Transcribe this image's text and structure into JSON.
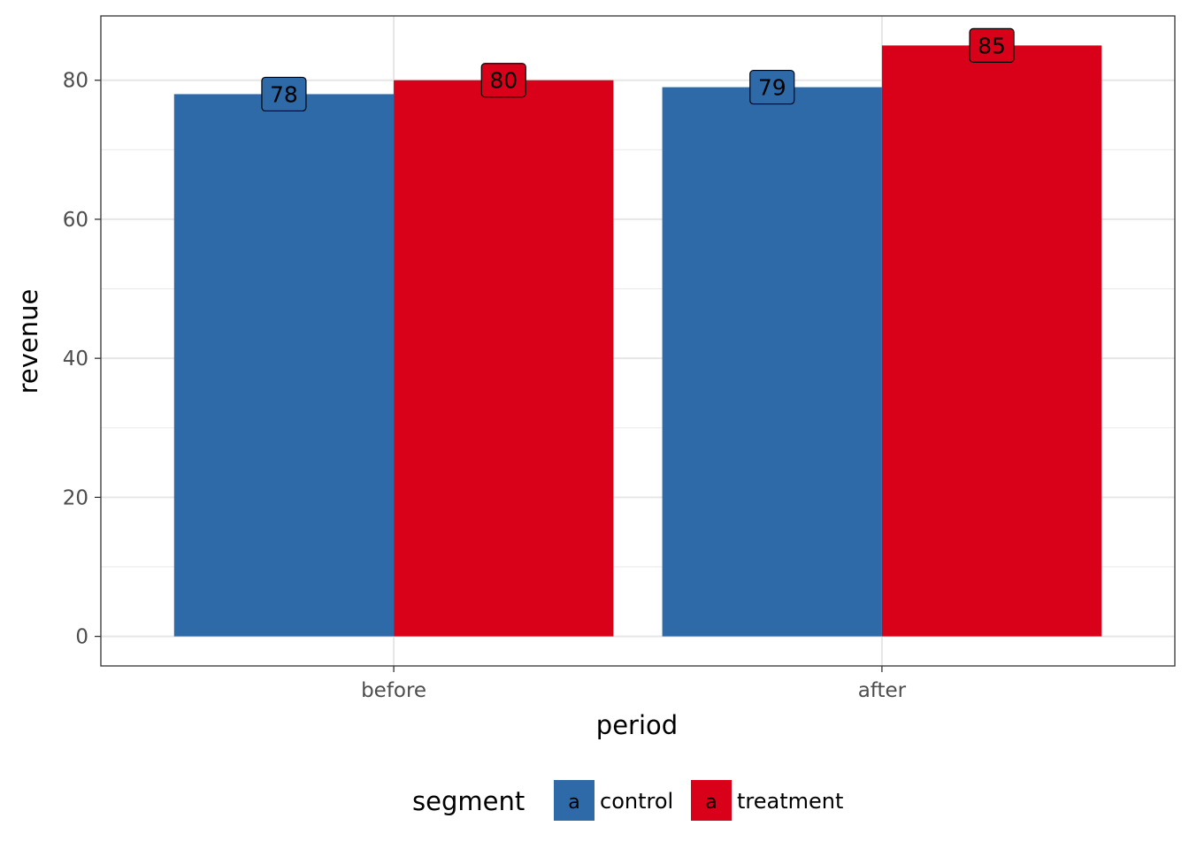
{
  "chart_data": {
    "type": "bar",
    "categories": [
      "before",
      "after"
    ],
    "series": [
      {
        "name": "control",
        "values": [
          78,
          79
        ],
        "color": "#2E6AA8"
      },
      {
        "name": "treatment",
        "values": [
          80,
          85
        ],
        "color": "#D90019"
      }
    ],
    "xlabel": "period",
    "ylabel": "revenue",
    "ylim": [
      -4.25,
      89.25
    ],
    "yticks": [
      0,
      20,
      40,
      60,
      80
    ],
    "ytick_labels": [
      "0",
      "20",
      "40",
      "60",
      "80"
    ],
    "grid": true,
    "legend": {
      "title": "segment",
      "position": "bottom",
      "key_glyph": "a"
    },
    "data_labels": true
  }
}
